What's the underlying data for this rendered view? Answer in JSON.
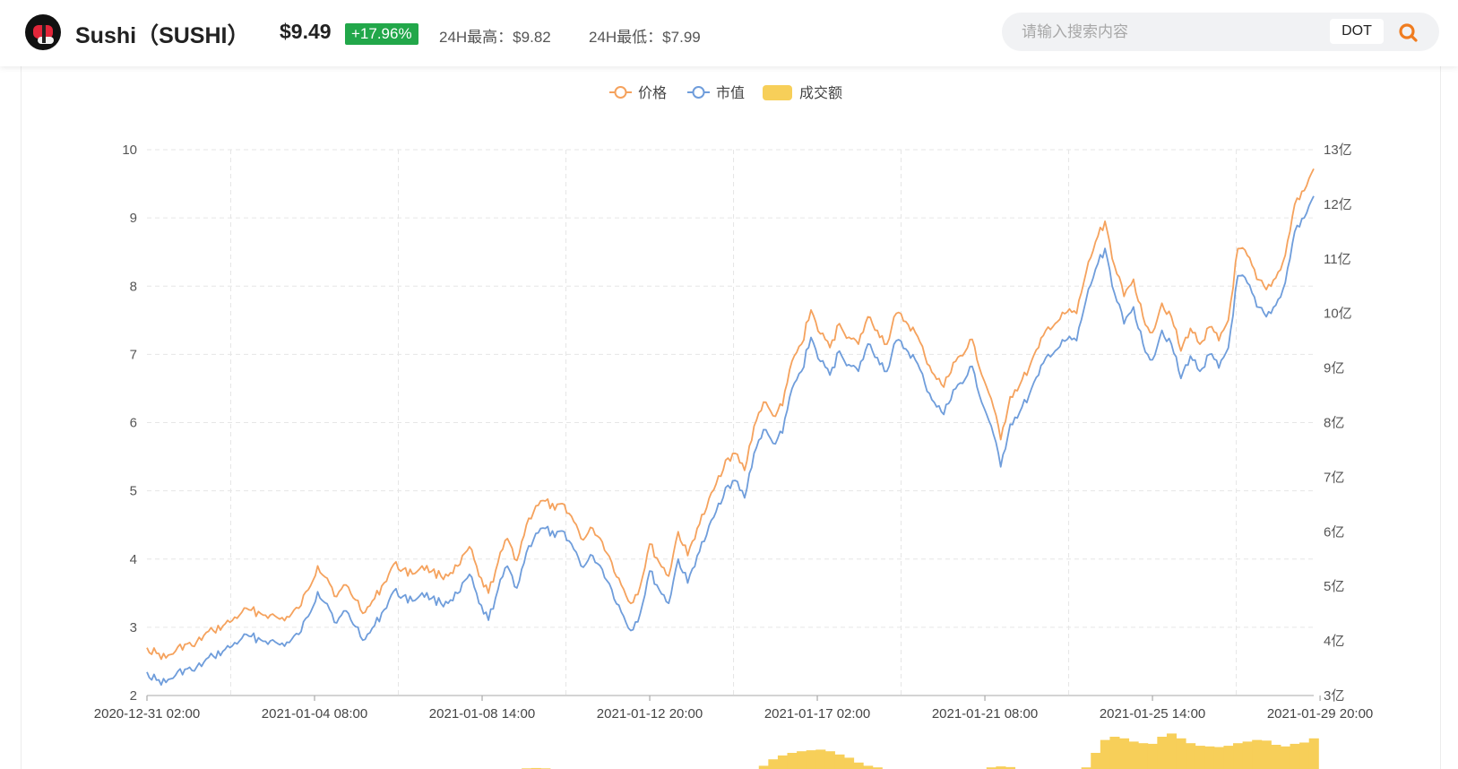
{
  "header": {
    "coin_name": "Sushi（SUSHI）",
    "price": "$9.49",
    "change": "+17.96%",
    "high_24h": "24H最高：$9.82",
    "low_24h": "24H最低：$7.99",
    "search_placeholder": "请输入搜索内容",
    "search_token": "DOT",
    "logo_icon": "sushi-logo-icon",
    "search_icon": "search-icon"
  },
  "colors": {
    "price": "#f5a25d",
    "market_cap": "#6f9ddb",
    "volume": "#f7cf59",
    "change_up": "#22a74a",
    "search_icon": "#f07c1f"
  },
  "chart_data": {
    "type": "line",
    "legend": [
      "价格",
      "市值",
      "成交额"
    ],
    "legend_position": "top-center",
    "grid": true,
    "x_tick_labels": [
      "2020-12-31 02:00",
      "2021-01-04 08:00",
      "2021-01-08 14:00",
      "2021-01-12 20:00",
      "2021-01-17 02:00",
      "2021-01-21 08:00",
      "2021-01-25 14:00",
      "2021-01-29 20:00"
    ],
    "y_left": {
      "range": [
        2,
        10
      ],
      "tick_labels": [
        "2",
        "3",
        "4",
        "5",
        "6",
        "7",
        "8",
        "9",
        "10"
      ]
    },
    "y_right": {
      "range": [
        3,
        13
      ],
      "tick_labels": [
        "3亿",
        "4亿",
        "5亿",
        "6亿",
        "7亿",
        "8亿",
        "9亿",
        "10亿",
        "11亿",
        "12亿",
        "13亿"
      ]
    },
    "x": [
      0,
      6,
      12,
      18,
      24,
      30,
      36,
      42,
      48,
      54,
      60,
      66,
      72,
      78,
      84,
      90,
      96,
      102,
      108,
      114,
      120,
      126,
      132,
      138,
      144,
      150,
      156,
      162,
      168,
      174,
      180,
      186,
      192,
      198,
      204,
      210,
      216,
      222,
      228,
      234,
      240,
      246,
      252,
      258,
      264,
      270,
      276,
      282,
      288,
      294,
      300,
      306,
      312,
      318,
      324,
      330,
      336,
      342,
      348,
      354,
      360,
      366,
      372,
      378,
      384,
      390,
      396,
      402,
      408,
      414,
      420,
      426,
      432,
      438,
      444,
      450,
      456,
      462,
      468,
      474,
      480,
      486,
      492,
      498,
      504,
      510,
      516,
      522,
      528,
      534,
      540,
      546,
      552,
      558,
      564,
      570,
      576,
      582,
      588,
      594,
      600,
      606,
      612,
      618,
      624,
      630,
      636,
      642,
      648,
      654,
      660,
      666,
      672,
      678,
      684,
      690,
      696,
      702,
      708,
      714,
      720,
      726,
      732,
      738
    ],
    "x_unit": "hours since 2020-12-31 02:00",
    "series": [
      {
        "name": "价格",
        "axis": "left",
        "values": [
          2.7,
          2.62,
          2.55,
          2.65,
          2.75,
          2.72,
          2.88,
          2.95,
          3.02,
          3.1,
          3.22,
          3.25,
          3.2,
          3.18,
          3.12,
          3.15,
          3.28,
          3.55,
          3.9,
          3.72,
          3.45,
          3.62,
          3.4,
          3.22,
          3.42,
          3.65,
          3.92,
          3.85,
          3.78,
          3.9,
          3.82,
          3.75,
          3.8,
          3.92,
          4.18,
          3.75,
          3.5,
          3.95,
          4.3,
          3.98,
          4.5,
          4.78,
          4.85,
          4.72,
          4.8,
          4.55,
          4.28,
          4.45,
          4.25,
          3.95,
          3.62,
          3.35,
          3.6,
          4.22,
          3.95,
          3.75,
          4.4,
          4.05,
          4.45,
          4.75,
          5.1,
          5.45,
          5.55,
          5.3,
          5.95,
          6.3,
          6.1,
          6.25,
          6.9,
          7.15,
          7.65,
          7.3,
          7.1,
          7.45,
          7.25,
          7.15,
          7.55,
          7.35,
          7.15,
          7.6,
          7.48,
          7.32,
          6.98,
          6.7,
          6.52,
          6.88,
          6.98,
          7.22,
          6.7,
          6.35,
          5.75,
          6.38,
          6.55,
          6.8,
          7.1,
          7.4,
          7.48,
          7.62,
          7.6,
          8.2,
          8.65,
          8.95,
          8.3,
          7.85,
          8.1,
          7.55,
          7.32,
          7.75,
          7.55,
          7.05,
          7.38,
          7.15,
          7.4,
          7.2,
          7.5,
          8.55,
          8.45,
          8.1,
          7.95,
          8.12,
          8.45,
          9.2,
          9.4,
          9.72
        ]
      },
      {
        "name": "市值",
        "axis": "right",
        "values": [
          3.43,
          3.28,
          3.24,
          3.37,
          3.48,
          3.45,
          3.61,
          3.72,
          3.81,
          3.91,
          4.05,
          4.08,
          4.02,
          4.0,
          3.93,
          3.97,
          4.12,
          4.45,
          4.9,
          4.68,
          4.33,
          4.55,
          4.26,
          4.03,
          4.28,
          4.57,
          4.91,
          4.82,
          4.73,
          4.88,
          4.78,
          4.69,
          4.75,
          4.9,
          5.22,
          4.69,
          4.38,
          4.94,
          5.37,
          4.97,
          5.62,
          5.97,
          6.06,
          5.9,
          6.0,
          5.68,
          5.35,
          5.56,
          5.31,
          4.94,
          4.53,
          4.19,
          4.5,
          5.28,
          4.94,
          4.69,
          5.5,
          5.06,
          5.56,
          5.94,
          6.37,
          6.81,
          6.94,
          6.62,
          7.44,
          7.87,
          7.62,
          7.81,
          8.62,
          8.94,
          9.56,
          9.12,
          8.87,
          9.31,
          9.06,
          8.94,
          9.44,
          9.19,
          8.94,
          9.5,
          9.35,
          9.15,
          8.72,
          8.37,
          8.15,
          8.6,
          8.72,
          9.03,
          8.37,
          7.94,
          7.19,
          7.97,
          8.19,
          8.5,
          8.87,
          9.25,
          9.35,
          9.52,
          9.5,
          10.25,
          10.81,
          11.19,
          10.37,
          9.81,
          10.12,
          9.44,
          9.15,
          9.69,
          9.44,
          8.81,
          9.22,
          8.94,
          9.25,
          9.0,
          9.37,
          10.69,
          10.56,
          10.12,
          9.94,
          10.15,
          10.56,
          11.5,
          11.75,
          12.15
        ]
      },
      {
        "name": "成交额",
        "axis": "right",
        "visible_from_hour": 240,
        "note_label": "",
        "values": [
          0,
          0,
          0,
          0,
          0,
          0,
          0,
          0,
          0,
          0,
          0,
          0,
          0,
          0,
          0,
          0,
          0,
          0,
          0,
          0,
          0,
          0,
          0,
          0,
          0,
          0,
          0,
          0,
          0,
          0,
          0,
          0,
          0,
          0,
          0,
          0,
          0,
          0,
          0,
          0,
          0.02,
          0.03,
          0.02,
          0,
          0,
          0,
          0,
          0,
          0,
          0,
          0,
          0,
          0,
          0,
          0,
          0,
          0,
          0,
          0,
          0,
          0,
          0,
          0,
          0,
          0,
          0.1,
          0.3,
          0.42,
          0.5,
          0.55,
          0.58,
          0.6,
          0.55,
          0.45,
          0.35,
          0.2,
          0.1,
          0.05,
          0,
          0,
          0,
          0,
          0,
          0,
          0,
          0,
          0,
          0,
          0,
          0.05,
          0.08,
          0.06,
          0,
          0,
          0,
          0,
          0,
          0,
          0,
          0.05,
          0.5,
          0.9,
          1.0,
          0.95,
          0.85,
          0.8,
          0.78,
          1.0,
          1.1,
          0.95,
          0.8,
          0.72,
          0.7,
          0.68,
          0.72,
          0.8,
          0.85,
          0.9,
          0.88,
          0.75,
          0.7,
          0.78,
          0.82,
          0.95
        ]
      }
    ]
  }
}
